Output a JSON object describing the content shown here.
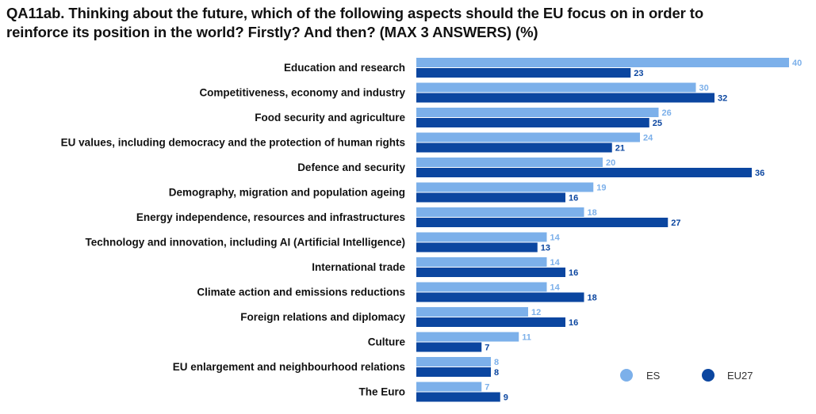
{
  "title_lines": [
    "QA11ab. Thinking about the future, which of the following aspects should the EU focus on in order to",
    "reinforce its position in the world? Firstly? And then? (MAX 3 ANSWERS) (%)"
  ],
  "colors": {
    "ES": "#7cb0ea",
    "EU27": "#0b46a0"
  },
  "chart_data": {
    "type": "bar",
    "orientation": "horizontal",
    "title": "QA11ab. Thinking about the future, which of the following aspects should the EU focus on in order to reinforce its position in the world? Firstly? And then? (MAX 3 ANSWERS) (%)",
    "categories": [
      "Education and research",
      "Competitiveness, economy and industry",
      "Food security and agriculture",
      "EU values, including democracy and the protection of human rights",
      "Defence and security",
      "Demography, migration and population ageing",
      "Energy independence, resources and infrastructures",
      "Technology and innovation, including AI (Artificial Intelligence)",
      "International trade",
      "Climate action and emissions reductions",
      "Foreign relations and diplomacy",
      "Culture",
      "EU enlargement and neighbourhood relations",
      "The Euro"
    ],
    "series": [
      {
        "name": "ES",
        "values": [
          40,
          30,
          26,
          24,
          20,
          19,
          18,
          14,
          14,
          14,
          12,
          11,
          8,
          7
        ]
      },
      {
        "name": "EU27",
        "values": [
          23,
          32,
          25,
          21,
          36,
          16,
          27,
          13,
          16,
          18,
          16,
          7,
          8,
          9
        ]
      }
    ],
    "xlim": [
      0,
      40
    ],
    "grid": false,
    "legend": {
      "position": "bottom-right",
      "entries": [
        "ES",
        "EU27"
      ]
    }
  }
}
